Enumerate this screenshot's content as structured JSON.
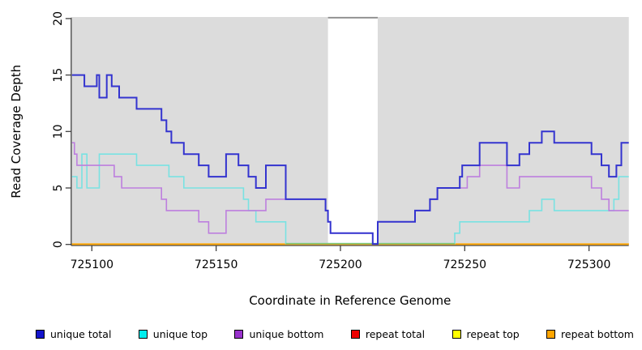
{
  "figure": {
    "x_axis_label": "Coordinate in Reference Genome",
    "y_axis_label": "Read Coverage Depth"
  },
  "axes": {
    "x": {
      "tick_labels": [
        "725100",
        "725150",
        "725200",
        "725250",
        "725300"
      ],
      "tick_values": [
        725100,
        725150,
        725200,
        725250,
        725300
      ],
      "range": [
        725091.7,
        725316
      ]
    },
    "y": {
      "tick_labels": [
        "0",
        "5",
        "10",
        "15",
        "20"
      ],
      "tick_values": [
        0,
        5,
        10,
        15,
        20
      ],
      "range": [
        0,
        20.1
      ]
    }
  },
  "colors": {
    "panel_background": "#DCDCDC",
    "mask_band": "#FFFFFF",
    "axis": "#404040",
    "baseline_blend_green": "#7CC578"
  },
  "mask_region": {
    "start": 725195,
    "end": 725215
  },
  "chart_data": {
    "type": "line",
    "subtype": "step",
    "title": "",
    "xlabel": "Coordinate in Reference Genome",
    "ylabel": "Read Coverage Depth",
    "xlim": [
      725091.7,
      725316
    ],
    "ylim": [
      0,
      20.1
    ],
    "grid": false,
    "legend_position": "bottom",
    "x_end": 725316,
    "series": [
      {
        "name": "unique total",
        "color": "#3434CF",
        "width": 2,
        "segments": [
          [
            725092,
            15
          ],
          [
            725097,
            14
          ],
          [
            725102,
            15
          ],
          [
            725103,
            13
          ],
          [
            725106,
            15
          ],
          [
            725108,
            14
          ],
          [
            725111,
            13
          ],
          [
            725118,
            12
          ],
          [
            725128,
            11
          ],
          [
            725130,
            10
          ],
          [
            725132,
            9
          ],
          [
            725137,
            8
          ],
          [
            725143,
            7
          ],
          [
            725147,
            6
          ],
          [
            725154,
            8
          ],
          [
            725159,
            7
          ],
          [
            725163,
            6
          ],
          [
            725166,
            5
          ],
          [
            725170,
            7
          ],
          [
            725178,
            4
          ],
          [
            725194,
            3
          ],
          [
            725195,
            2
          ],
          [
            725196,
            1
          ],
          [
            725213,
            0
          ],
          [
            725215,
            2
          ],
          [
            725230,
            3
          ],
          [
            725236,
            4
          ],
          [
            725239,
            5
          ],
          [
            725248,
            6
          ],
          [
            725249,
            7
          ],
          [
            725256,
            9
          ],
          [
            725267,
            7
          ],
          [
            725272,
            8
          ],
          [
            725276,
            9
          ],
          [
            725281,
            10
          ],
          [
            725286,
            9
          ],
          [
            725301,
            8
          ],
          [
            725305,
            7
          ],
          [
            725308,
            6
          ],
          [
            725311,
            7
          ],
          [
            725313,
            9
          ]
        ]
      },
      {
        "name": "unique top",
        "color": "#79E2E2",
        "width": 1.6,
        "segments": [
          [
            725092,
            6
          ],
          [
            725094,
            5
          ],
          [
            725096,
            8
          ],
          [
            725098,
            5
          ],
          [
            725103,
            8
          ],
          [
            725118,
            7
          ],
          [
            725131,
            6
          ],
          [
            725137,
            5
          ],
          [
            725161,
            4
          ],
          [
            725163,
            3
          ],
          [
            725166,
            2
          ],
          [
            725178,
            0
          ],
          [
            725246,
            1
          ],
          [
            725248,
            2
          ],
          [
            725276,
            3
          ],
          [
            725281,
            4
          ],
          [
            725286,
            3
          ],
          [
            725310,
            4
          ],
          [
            725312,
            6
          ]
        ]
      },
      {
        "name": "unique bottom",
        "color": "#BD7FDE",
        "width": 1.6,
        "segments": [
          [
            725092,
            9
          ],
          [
            725093,
            8
          ],
          [
            725094,
            7
          ],
          [
            725109,
            6
          ],
          [
            725112,
            5
          ],
          [
            725128,
            4
          ],
          [
            725130,
            3
          ],
          [
            725143,
            2
          ],
          [
            725147,
            1
          ],
          [
            725154,
            3
          ],
          [
            725170,
            4
          ],
          [
            725194,
            3
          ],
          [
            725195,
            2
          ],
          [
            725196,
            1
          ],
          [
            725213,
            0
          ],
          [
            725215,
            2
          ],
          [
            725230,
            3
          ],
          [
            725236,
            4
          ],
          [
            725239,
            5
          ],
          [
            725251,
            6
          ],
          [
            725256,
            7
          ],
          [
            725267,
            5
          ],
          [
            725272,
            6
          ],
          [
            725301,
            5
          ],
          [
            725305,
            4
          ],
          [
            725308,
            3
          ]
        ]
      },
      {
        "name": "repeat total",
        "color": "#DD0000",
        "width": 1.6,
        "segments": [
          [
            725092,
            0
          ]
        ]
      },
      {
        "name": "repeat top",
        "color": "#FFFF00",
        "width": 1.6,
        "segments": [
          [
            725092,
            0
          ]
        ]
      },
      {
        "name": "repeat bottom",
        "color": "#FFA500",
        "width": 1.8,
        "segments": [
          [
            725092,
            0
          ]
        ]
      }
    ],
    "baseline_blend_segment": {
      "start": 725178,
      "end": 725246
    }
  },
  "legend": {
    "items": [
      {
        "label": "unique total",
        "swatch_color": "#1414CC"
      },
      {
        "label": "unique top",
        "swatch_color": "#00EEEE"
      },
      {
        "label": "unique bottom",
        "swatch_color": "#9932CC"
      },
      {
        "label": "repeat total",
        "swatch_color": "#EE0000"
      },
      {
        "label": "repeat top",
        "swatch_color": "#FFFF00"
      },
      {
        "label": "repeat bottom",
        "swatch_color": "#FFA500"
      }
    ]
  }
}
